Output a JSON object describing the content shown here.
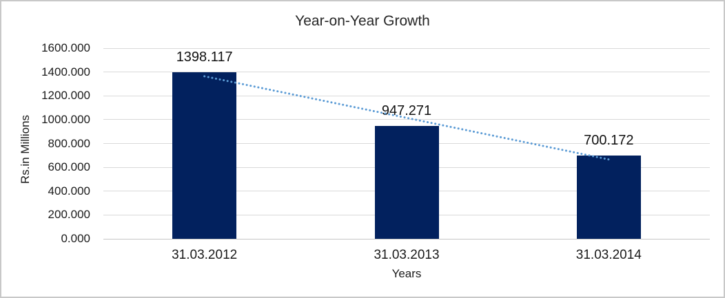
{
  "chart_data": {
    "type": "bar",
    "title": "Year-on-Year Growth",
    "xlabel": "Years",
    "ylabel": "Rs.in Millions",
    "categories": [
      "31.03.2012",
      "31.03.2013",
      "31.03.2014"
    ],
    "values": [
      1398.117,
      947.271,
      700.172
    ],
    "data_labels": [
      "1398.117",
      "947.271",
      "700.172"
    ],
    "ylim": [
      0,
      1600
    ],
    "ytick_step": 200,
    "ytick_labels": [
      "0.000",
      "200.000",
      "400.000",
      "600.000",
      "800.000",
      "1000.000",
      "1200.000",
      "1400.000",
      "1600.000"
    ],
    "grid": "horizontal-gridlines",
    "legend": "none",
    "trendline": {
      "type": "linear",
      "style": "dotted"
    },
    "colors": {
      "bar": "#02215e",
      "trendline": "#5b9bd5",
      "gridline": "#d9d9d9",
      "axis_line": "#c6c6c6",
      "text": "#1a1a1a",
      "chart_border": "#c8c8c8",
      "background": "#ffffff"
    }
  }
}
